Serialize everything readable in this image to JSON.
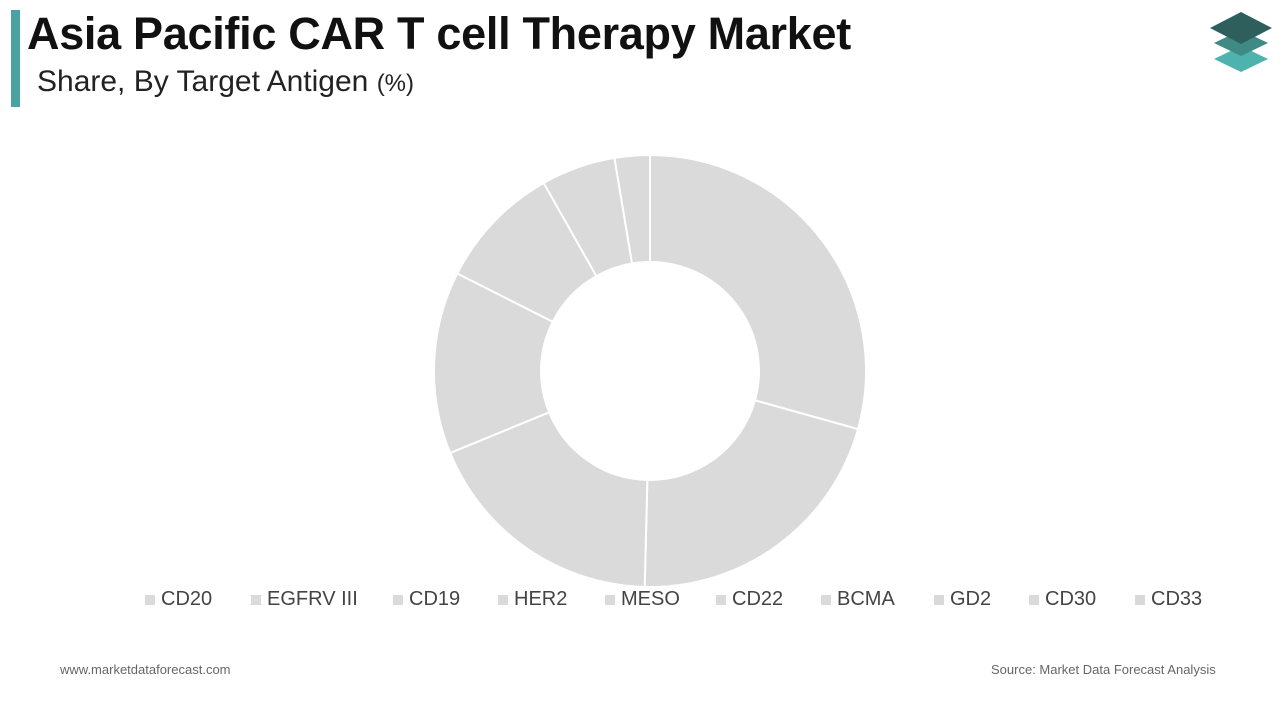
{
  "header": {
    "title": "Asia Pacific CAR T cell Therapy Market",
    "subtitle": "Share, By Target Antigen",
    "subtitle_unit": "(%)",
    "accent_color": "#4aa3a3"
  },
  "logo": {
    "icon": "stacked-layers-logo-icon",
    "colors": [
      "#2f5f5c",
      "#3f8a85",
      "#4fb3ad"
    ]
  },
  "chart_data": {
    "type": "pie",
    "style": "donut",
    "categories": [
      "CD20",
      "EGFRV III",
      "CD19",
      "HER2",
      "MESO",
      "CD22",
      "BCMA",
      "GD2",
      "CD30",
      "CD33"
    ],
    "values": [
      30.1,
      21.6,
      18.9,
      14.0,
      9.6,
      5.7,
      2.7,
      0,
      0,
      0
    ],
    "slice_color": "#dadada",
    "separator_color": "#ffffff",
    "legend_position": "bottom",
    "title": "",
    "xlabel": "",
    "ylabel": ""
  },
  "footer": {
    "website": "www.marketdataforecast.com",
    "source": "Source: Market Data Forecast Analysis"
  }
}
